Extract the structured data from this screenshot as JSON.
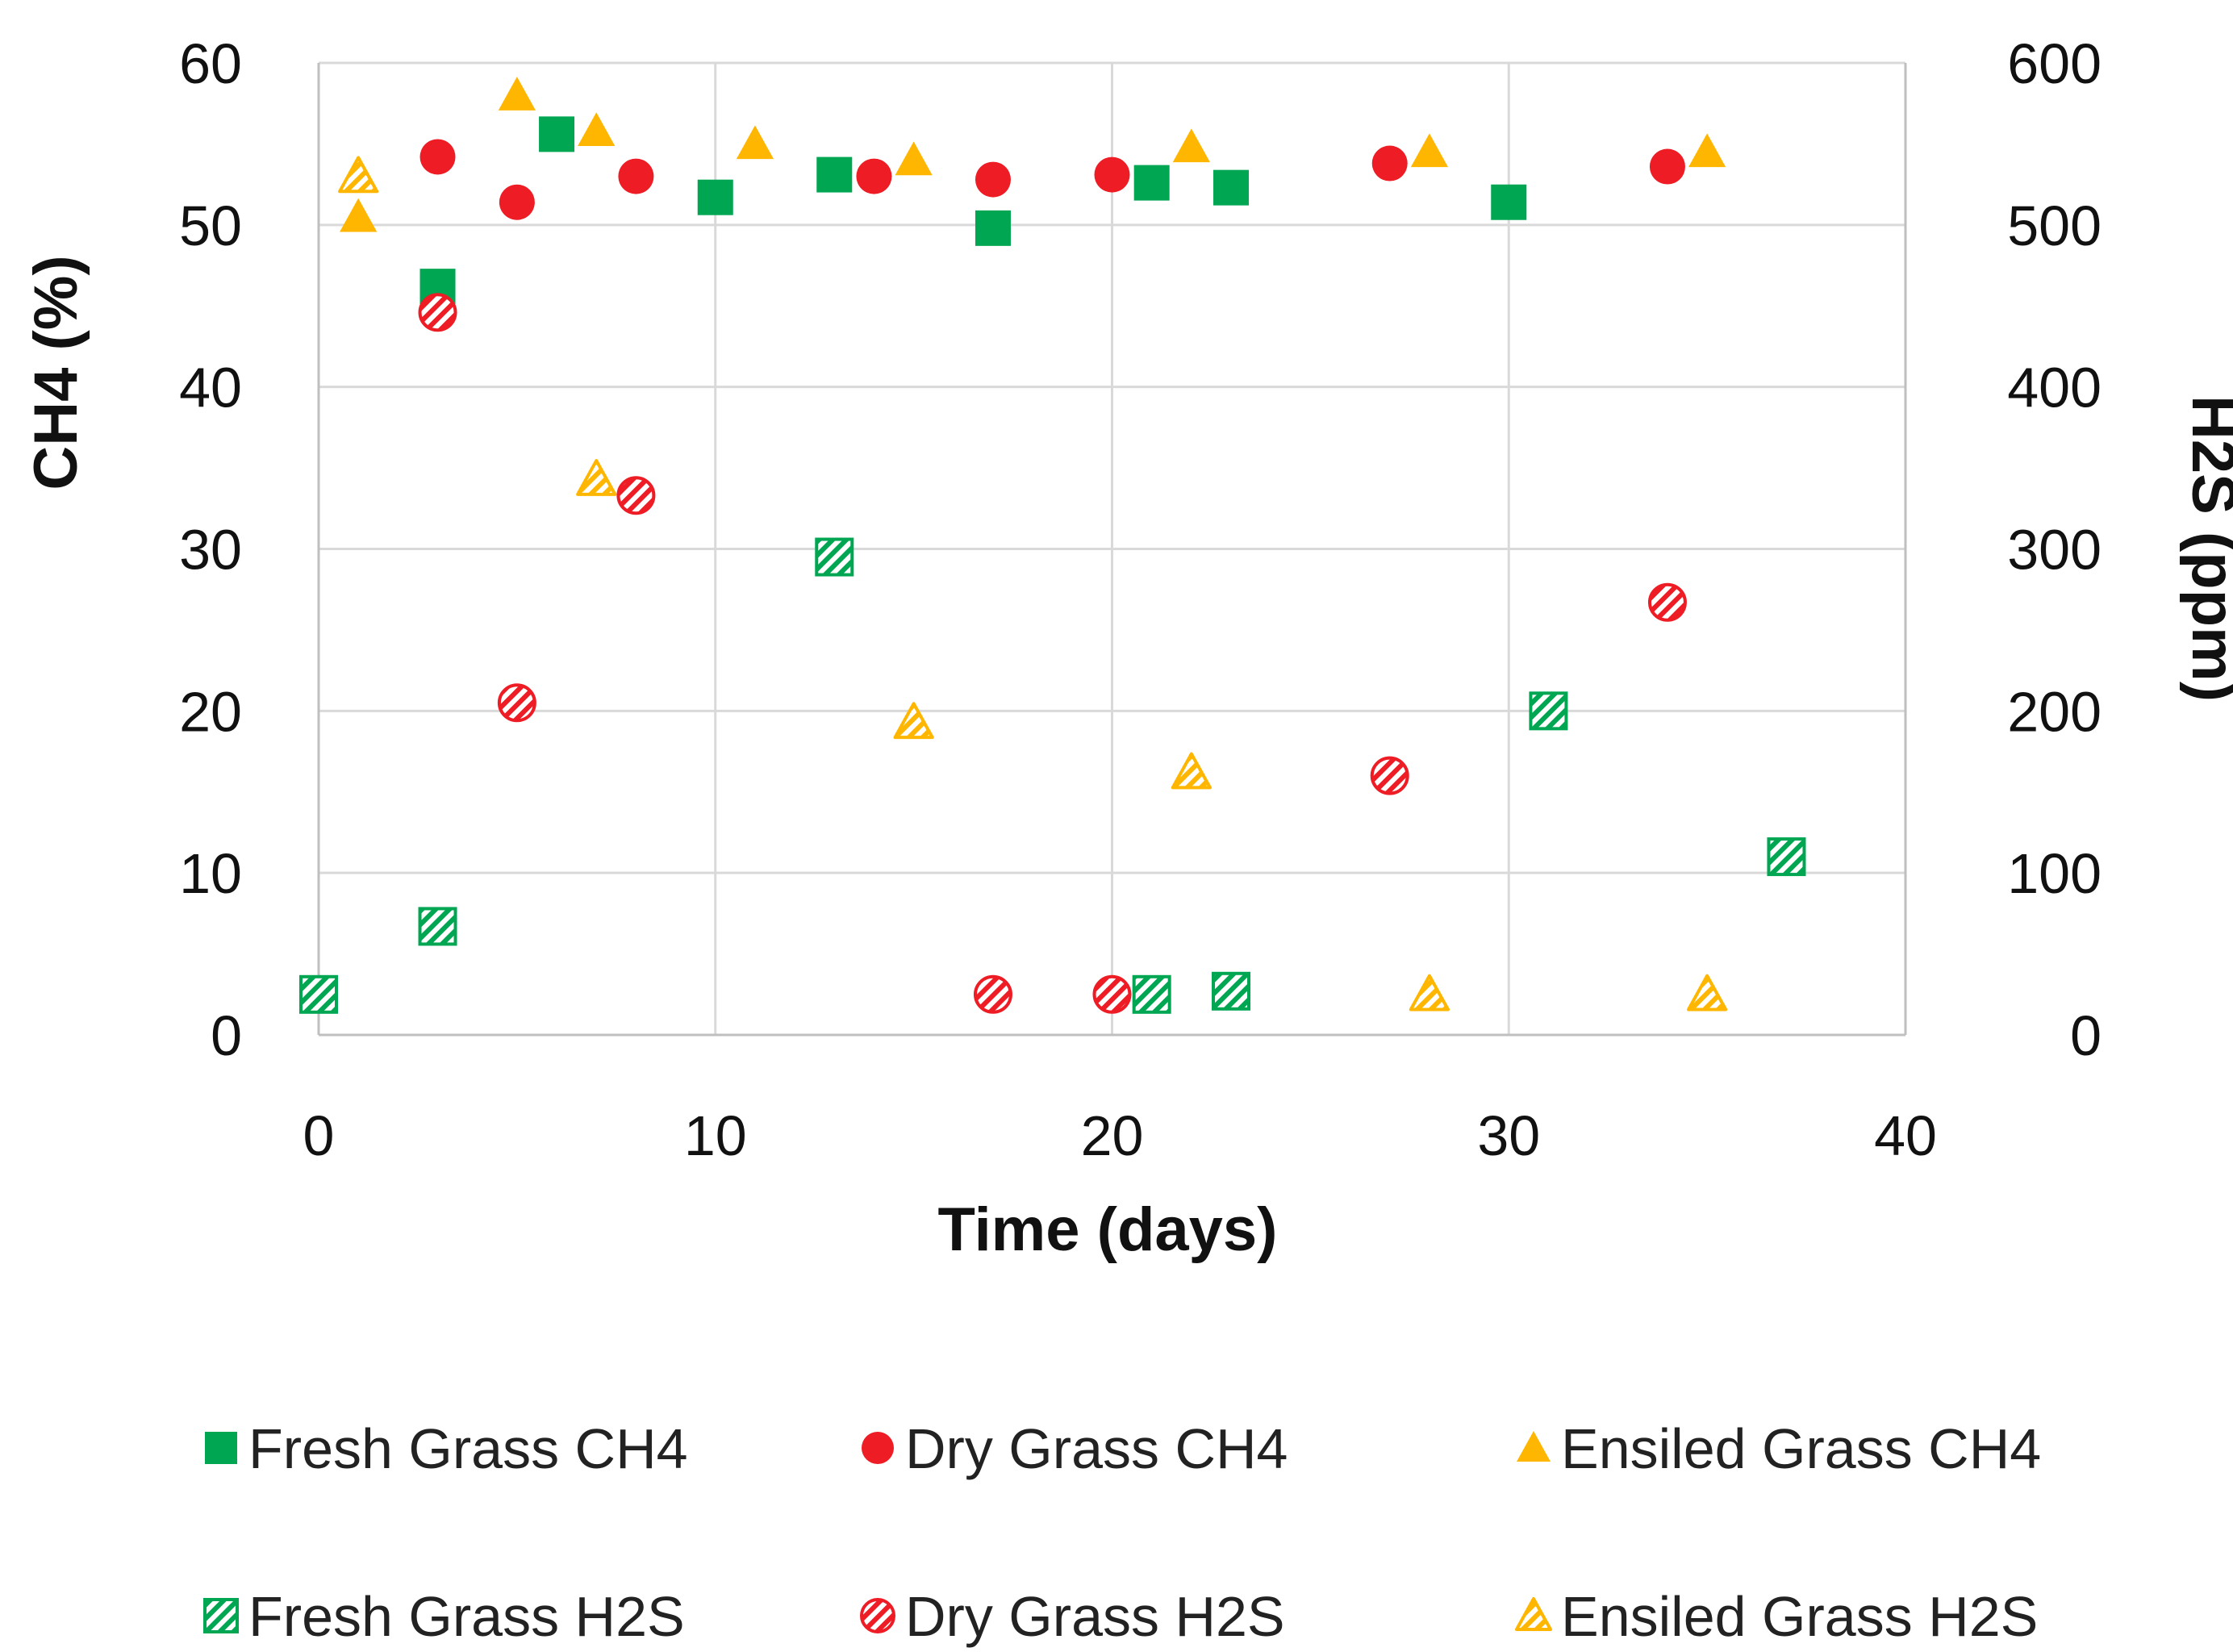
{
  "chart_data": {
    "type": "scatter",
    "title": "",
    "xlabel": "Time (days)",
    "ylabel": "CH4 (%)",
    "y2label": "H2S (ppm)",
    "xlim": [
      0,
      40
    ],
    "ylim": [
      0,
      60
    ],
    "y2lim": [
      0,
      600
    ],
    "xticks": [
      "0",
      "10",
      "20",
      "30",
      "40"
    ],
    "yticks": [
      "0",
      "10",
      "20",
      "30",
      "40",
      "50",
      "60"
    ],
    "y2ticks": [
      "0",
      "100",
      "200",
      "300",
      "400",
      "500",
      "600"
    ],
    "grid": true,
    "legend_position": "bottom",
    "colors": {
      "green": "#00a651",
      "red": "#ee1c24",
      "orange": "#ffb600"
    },
    "series": [
      {
        "name": "Fresh Grass CH4",
        "axis": "left",
        "marker": "square",
        "color": "#00a651",
        "fill": "solid",
        "x": [
          3,
          6,
          10,
          13,
          17,
          21,
          23,
          30
        ],
        "y": [
          46.2,
          55.6,
          51.7,
          53.1,
          49.8,
          52.6,
          52.3,
          51.4
        ]
      },
      {
        "name": "Dry Grass CH4",
        "axis": "left",
        "marker": "circle",
        "color": "#ee1c24",
        "fill": "solid",
        "x": [
          3,
          5,
          8,
          14,
          17,
          20,
          27,
          34
        ],
        "y": [
          54.2,
          51.4,
          53.0,
          53.0,
          52.8,
          53.1,
          53.8,
          53.6
        ]
      },
      {
        "name": "Ensiled Grass CH4",
        "axis": "left",
        "marker": "triangle",
        "color": "#ffb600",
        "fill": "solid",
        "x": [
          1,
          5,
          7,
          11,
          15,
          22,
          28,
          35
        ],
        "y": [
          50.5,
          58.0,
          55.8,
          55.0,
          54.0,
          54.8,
          54.5,
          54.5
        ]
      },
      {
        "name": "Fresh Grass H2S",
        "axis": "right",
        "marker": "square",
        "color": "#00a651",
        "fill": "hatched",
        "x": [
          0,
          3,
          13,
          21,
          23,
          31,
          37
        ],
        "y": [
          25,
          67,
          295,
          25,
          27,
          200,
          110
        ]
      },
      {
        "name": "Dry Grass H2S",
        "axis": "right",
        "marker": "circle",
        "color": "#ee1c24",
        "fill": "hatched",
        "x": [
          3,
          5,
          8,
          17,
          20,
          27,
          34
        ],
        "y": [
          446,
          205,
          333,
          25,
          25,
          160,
          267
        ]
      },
      {
        "name": "Ensiled Grass H2S",
        "axis": "right",
        "marker": "triangle",
        "color": "#ffb600",
        "fill": "hatched",
        "x": [
          1,
          7,
          15,
          22,
          28,
          35
        ],
        "y": [
          530,
          343,
          193,
          162,
          25,
          25
        ]
      }
    ]
  }
}
